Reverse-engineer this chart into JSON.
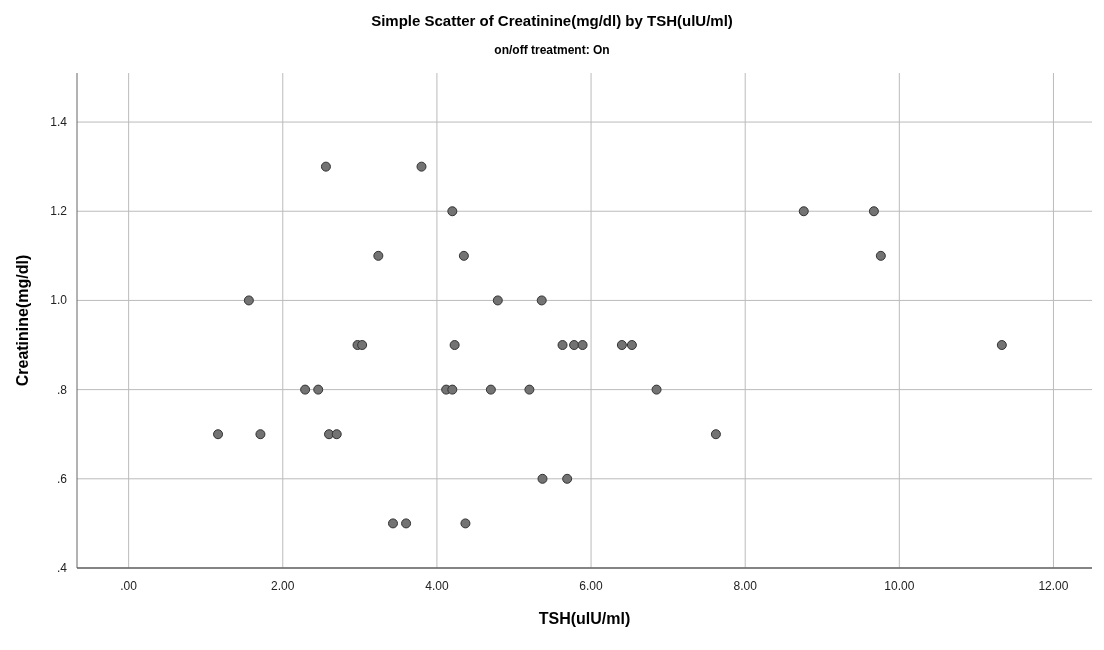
{
  "chart_data": {
    "type": "scatter",
    "title": "Simple Scatter of Creatinine(mg/dl) by TSH(ulU/ml)",
    "subtitle": "on/off treatment: On",
    "xlabel": "TSH(ulU/ml)",
    "ylabel": "Creatinine(mg/dl)",
    "xlim": [
      -0.67,
      12.5
    ],
    "ylim": [
      0.4,
      1.51
    ],
    "xticks": [
      {
        "value": 0,
        "label": ".00"
      },
      {
        "value": 2,
        "label": "2.00"
      },
      {
        "value": 4,
        "label": "4.00"
      },
      {
        "value": 6,
        "label": "6.00"
      },
      {
        "value": 8,
        "label": "8.00"
      },
      {
        "value": 10,
        "label": "10.00"
      },
      {
        "value": 12,
        "label": "12.00"
      }
    ],
    "yticks": [
      {
        "value": 0.4,
        "label": ".4"
      },
      {
        "value": 0.6,
        "label": ".6"
      },
      {
        "value": 0.8,
        "label": ".8"
      },
      {
        "value": 1.0,
        "label": "1.0"
      },
      {
        "value": 1.2,
        "label": "1.2"
      },
      {
        "value": 1.4,
        "label": "1.4"
      }
    ],
    "grid": true,
    "marker": "circle",
    "series": [
      {
        "color": "#737373",
        "x": [
          2.56,
          3.8,
          4.2,
          8.76,
          9.67,
          3.24,
          4.35,
          9.76,
          1.56,
          4.79,
          5.36,
          2.97,
          3.03,
          4.23,
          5.63,
          5.78,
          5.89,
          6.4,
          6.53,
          11.33,
          2.29,
          2.46,
          4.12,
          4.2,
          4.7,
          5.2,
          6.85,
          1.16,
          1.71,
          2.6,
          2.7,
          7.62,
          5.37,
          5.69,
          3.43,
          3.6,
          4.37
        ],
        "values": [
          1.3,
          1.3,
          1.2,
          1.2,
          1.2,
          1.1,
          1.1,
          1.1,
          1.0,
          1.0,
          1.0,
          0.9,
          0.9,
          0.9,
          0.9,
          0.9,
          0.9,
          0.9,
          0.9,
          0.9,
          0.8,
          0.8,
          0.8,
          0.8,
          0.8,
          0.8,
          0.8,
          0.7,
          0.7,
          0.7,
          0.7,
          0.7,
          0.6,
          0.6,
          0.5,
          0.5,
          0.5
        ]
      }
    ]
  }
}
